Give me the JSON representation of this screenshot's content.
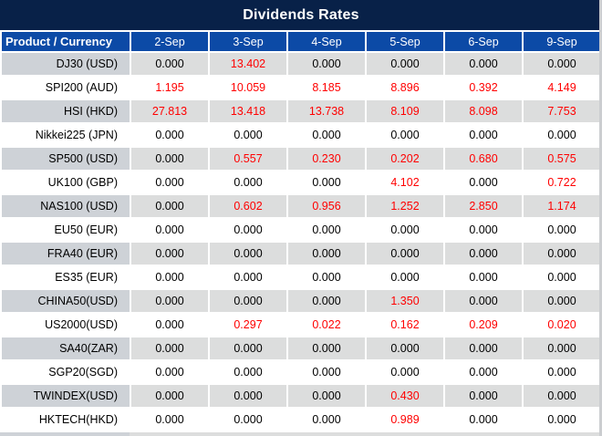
{
  "title": "Dividends Rates",
  "colors": {
    "title_bg": "#082148",
    "header_bg": "#0c4aa6",
    "header_text": "#ffffff",
    "odd_row_product_bg": "#ced2d7",
    "odd_row_bg": "#dcdddd",
    "even_row_bg": "#ffffff",
    "zero_value_text": "#000000",
    "nonzero_value_text": "#ff0000",
    "gridline": "#ffffff"
  },
  "chart_data": {
    "type": "table",
    "title": "Dividends Rates",
    "row_header_label": "Product / Currency",
    "columns": [
      "2-Sep",
      "3-Sep",
      "4-Sep",
      "5-Sep",
      "6-Sep",
      "9-Sep"
    ],
    "rows": [
      {
        "product": "DJ30 (USD)",
        "values": [
          "0.000",
          "13.402",
          "0.000",
          "0.000",
          "0.000",
          "0.000"
        ]
      },
      {
        "product": "SPI200 (AUD)",
        "values": [
          "1.195",
          "10.059",
          "8.185",
          "8.896",
          "0.392",
          "4.149"
        ]
      },
      {
        "product": "HSI (HKD)",
        "values": [
          "27.813",
          "13.418",
          "13.738",
          "8.109",
          "8.098",
          "7.753"
        ]
      },
      {
        "product": "Nikkei225 (JPN)",
        "values": [
          "0.000",
          "0.000",
          "0.000",
          "0.000",
          "0.000",
          "0.000"
        ]
      },
      {
        "product": "SP500 (USD)",
        "values": [
          "0.000",
          "0.557",
          "0.230",
          "0.202",
          "0.680",
          "0.575"
        ]
      },
      {
        "product": "UK100 (GBP)",
        "values": [
          "0.000",
          "0.000",
          "0.000",
          "4.102",
          "0.000",
          "0.722"
        ]
      },
      {
        "product": "NAS100 (USD)",
        "values": [
          "0.000",
          "0.602",
          "0.956",
          "1.252",
          "2.850",
          "1.174"
        ]
      },
      {
        "product": "EU50 (EUR)",
        "values": [
          "0.000",
          "0.000",
          "0.000",
          "0.000",
          "0.000",
          "0.000"
        ]
      },
      {
        "product": "FRA40 (EUR)",
        "values": [
          "0.000",
          "0.000",
          "0.000",
          "0.000",
          "0.000",
          "0.000"
        ]
      },
      {
        "product": "ES35 (EUR)",
        "values": [
          "0.000",
          "0.000",
          "0.000",
          "0.000",
          "0.000",
          "0.000"
        ]
      },
      {
        "product": "CHINA50(USD)",
        "values": [
          "0.000",
          "0.000",
          "0.000",
          "1.350",
          "0.000",
          "0.000"
        ]
      },
      {
        "product": "US2000(USD)",
        "values": [
          "0.000",
          "0.297",
          "0.022",
          "0.162",
          "0.209",
          "0.020"
        ]
      },
      {
        "product": "SA40(ZAR)",
        "values": [
          "0.000",
          "0.000",
          "0.000",
          "0.000",
          "0.000",
          "0.000"
        ]
      },
      {
        "product": "SGP20(SGD)",
        "values": [
          "0.000",
          "0.000",
          "0.000",
          "0.000",
          "0.000",
          "0.000"
        ]
      },
      {
        "product": "TWINDEX(USD)",
        "values": [
          "0.000",
          "0.000",
          "0.000",
          "0.430",
          "0.000",
          "0.000"
        ]
      },
      {
        "product": "HKTECH(HKD)",
        "values": [
          "0.000",
          "0.000",
          "0.000",
          "0.989",
          "0.000",
          "0.000"
        ]
      }
    ]
  }
}
